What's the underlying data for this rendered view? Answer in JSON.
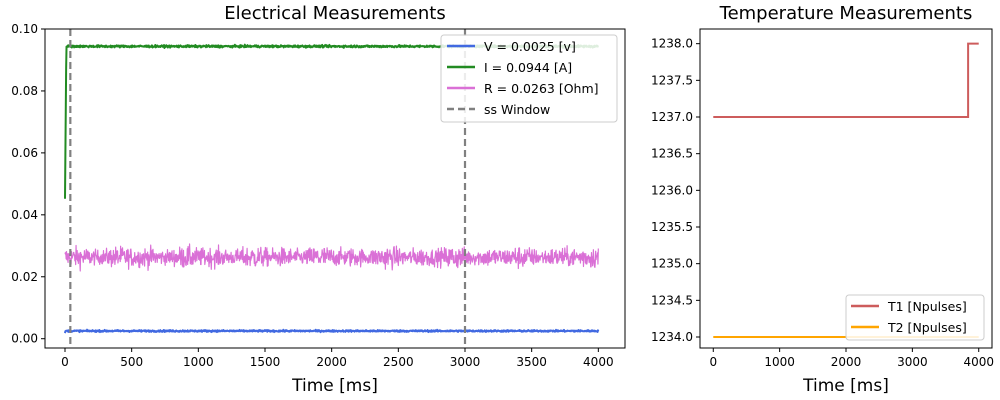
{
  "chart_data": [
    {
      "type": "line",
      "title": "Electrical Measurements",
      "xlabel": "Time [ms]",
      "ylabel": "",
      "xlim": [
        -150,
        4200
      ],
      "ylim": [
        -0.003,
        0.1
      ],
      "xticks": [
        0,
        500,
        1000,
        1500,
        2000,
        2500,
        3000,
        3500,
        4000
      ],
      "yticks": [
        0.0,
        0.02,
        0.04,
        0.06,
        0.08,
        0.1
      ],
      "ytick_labels": [
        "0.00",
        "0.02",
        "0.04",
        "0.06",
        "0.08",
        "0.10"
      ],
      "legend_position": "top-right",
      "series": [
        {
          "name": "V  = 0.0025 [v]",
          "color": "#4169e1",
          "x_start": 0,
          "x_end": 4000,
          "mean": 0.0025,
          "noise": 0.0004,
          "first_value": 0.0018
        },
        {
          "name": "I = 0.0944 [A]",
          "color": "#228b22",
          "x_start": 0,
          "x_end": 4000,
          "mean": 0.0944,
          "noise": 0.0005,
          "first_value": 0.0452,
          "rise_ms": 10
        },
        {
          "name": "R = 0.0263 [Ohm]",
          "color": "#da70d6",
          "x_start": 0,
          "x_end": 4000,
          "mean": 0.0263,
          "noise": 0.0035
        }
      ],
      "vlines": {
        "name": "ss Window",
        "color": "#808080",
        "x": [
          40,
          3000
        ]
      }
    },
    {
      "type": "line",
      "title": "Temperature Measurements",
      "xlabel": "Time [ms]",
      "ylabel": "",
      "xlim": [
        -200,
        4200
      ],
      "ylim": [
        1233.85,
        1238.2
      ],
      "xticks": [
        0,
        1000,
        2000,
        3000,
        4000
      ],
      "yticks": [
        1234.0,
        1234.5,
        1235.0,
        1235.5,
        1236.0,
        1236.5,
        1237.0,
        1237.5,
        1238.0
      ],
      "ytick_labels": [
        "1234.0",
        "1234.5",
        "1235.0",
        "1235.5",
        "1236.0",
        "1236.5",
        "1237.0",
        "1237.5",
        "1238.0"
      ],
      "legend_position": "lower-right",
      "series": [
        {
          "name": "T1 [Npulses]",
          "color": "#cd5c5c",
          "x": [
            0,
            3840,
            3840,
            4000
          ],
          "y": [
            1237.0,
            1237.0,
            1238.0,
            1238.0
          ]
        },
        {
          "name": "T2 [Npulses]",
          "color": "#ffa500",
          "x": [
            0,
            4000
          ],
          "y": [
            1234.0,
            1234.0
          ]
        }
      ]
    }
  ]
}
